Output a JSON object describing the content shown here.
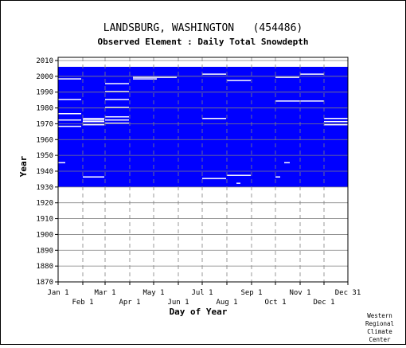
{
  "chart_data": {
    "type": "heatmap",
    "title": "LANDSBURG, WASHINGTON   (454486)",
    "subtitle": "Observed Element : Daily Total Snowdepth",
    "xlabel": "Day of Year",
    "ylabel": "Year",
    "x_ticks_top_row": [
      "Jan 1",
      "Mar 1",
      "May 1",
      "Jul 1",
      "Sep 1",
      "Nov 1",
      "Dec 31"
    ],
    "x_ticks_bottom_row": [
      "Feb 1",
      "Apr 1",
      "Jun 1",
      "Aug 1",
      "Oct 1",
      "Dec 1"
    ],
    "y_ticks": [
      "1870",
      "1880",
      "1890",
      "1900",
      "1910",
      "1920",
      "1930",
      "1940",
      "1950",
      "1960",
      "1970",
      "1980",
      "1990",
      "2000",
      "2010"
    ],
    "xlim": [
      1,
      365
    ],
    "ylim": [
      1870,
      2012
    ],
    "grid": true,
    "colors": {
      "data_present": "#0000ff",
      "missing": "#ffffff",
      "frame": "#000000",
      "grid": "#808080"
    },
    "data_period": {
      "start_year": 1930,
      "end_year": 2005
    },
    "missing_segments": [
      {
        "year": 1998,
        "start_day": 1,
        "end_day": 30
      },
      {
        "year": 1995,
        "start_day": 60,
        "end_day": 90
      },
      {
        "year": 1990,
        "start_day": 60,
        "end_day": 90
      },
      {
        "year": 1985,
        "start_day": 1,
        "end_day": 30
      },
      {
        "year": 1985,
        "start_day": 60,
        "end_day": 90
      },
      {
        "year": 1980,
        "start_day": 60,
        "end_day": 90
      },
      {
        "year": 1976,
        "start_day": 1,
        "end_day": 30
      },
      {
        "year": 1974,
        "start_day": 60,
        "end_day": 90
      },
      {
        "year": 1973,
        "start_day": 32,
        "end_day": 59
      },
      {
        "year": 1972,
        "start_day": 1,
        "end_day": 30
      },
      {
        "year": 1972,
        "start_day": 32,
        "end_day": 59
      },
      {
        "year": 1972,
        "start_day": 60,
        "end_day": 90
      },
      {
        "year": 1971,
        "start_day": 32,
        "end_day": 59
      },
      {
        "year": 1970,
        "start_day": 60,
        "end_day": 90
      },
      {
        "year": 1969,
        "start_day": 32,
        "end_day": 59
      },
      {
        "year": 1968,
        "start_day": 1,
        "end_day": 30
      },
      {
        "year": 1999,
        "start_day": 95,
        "end_day": 150
      },
      {
        "year": 1998,
        "start_day": 95,
        "end_day": 125
      },
      {
        "year": 2001,
        "start_day": 182,
        "end_day": 212
      },
      {
        "year": 1997,
        "start_day": 213,
        "end_day": 243
      },
      {
        "year": 1999,
        "start_day": 274,
        "end_day": 304
      },
      {
        "year": 2001,
        "start_day": 305,
        "end_day": 335
      },
      {
        "year": 1984,
        "start_day": 274,
        "end_day": 335
      },
      {
        "year": 1973,
        "start_day": 182,
        "end_day": 212
      },
      {
        "year": 1973,
        "start_day": 335,
        "end_day": 365
      },
      {
        "year": 1971,
        "start_day": 335,
        "end_day": 365
      },
      {
        "year": 1969,
        "start_day": 335,
        "end_day": 365
      },
      {
        "year": 1945,
        "start_day": 1,
        "end_day": 10
      },
      {
        "year": 1945,
        "start_day": 285,
        "end_day": 292
      },
      {
        "year": 1936,
        "start_day": 32,
        "end_day": 59
      },
      {
        "year": 1937,
        "start_day": 213,
        "end_day": 243
      },
      {
        "year": 1935,
        "start_day": 182,
        "end_day": 212
      },
      {
        "year": 1936,
        "start_day": 274,
        "end_day": 280
      },
      {
        "year": 1932,
        "start_day": 225,
        "end_day": 230
      }
    ],
    "credit": [
      "Western",
      "Regional",
      "Climate",
      "Center"
    ]
  }
}
